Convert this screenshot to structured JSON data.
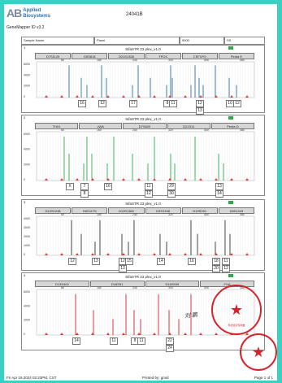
{
  "header": {
    "logo_mark": "AB",
    "logo_line1": "Applied",
    "logo_line2": "Biosystems",
    "software": "GeneMapper ID v3.2",
    "document_id": "24041B"
  },
  "info_row": {
    "sample_name": "Sample Name",
    "panel": "Panel",
    "sample_value": "9000",
    "ss": "SS"
  },
  "axis_ticks": [
    "80",
    "160",
    "240",
    "320",
    "400",
    "480"
  ],
  "panels": [
    {
      "number": "1",
      "title": "SifaSTR 23 plex_v1.0",
      "markers": [
        "D7S1129",
        "D5S818",
        "D21S1338",
        "TPOX",
        "CSF1PO",
        "Penta E"
      ],
      "y_ticks": [
        "6000",
        "4000",
        "2000",
        "0"
      ],
      "color": "#2e6fb3",
      "alleles": [
        "16",
        "12",
        "17",
        "8",
        "11",
        "12",
        "13",
        "10",
        "12"
      ]
    },
    {
      "number": "2",
      "title": "SifaSTR 23 plex_v1.0",
      "markers": [
        "TH01",
        "vWA",
        "D7S820",
        "D21S11",
        "Penta D"
      ],
      "y_ticks": [
        "6000",
        "4000",
        "2000",
        "0"
      ],
      "color": "#2faa4b",
      "alleles": [
        "X",
        "7",
        "8",
        "16",
        "11",
        "12",
        "29",
        "30",
        "13",
        "14"
      ]
    },
    {
      "number": "3",
      "title": "SifaSTR 23 plex_v1.0",
      "markers": [
        "D10S1248",
        "D6S1179",
        "D13S1360",
        "D2S1338",
        "D19S391",
        "D8S1043"
      ],
      "y_ticks": [
        "4000",
        "3000",
        "2000",
        "1000",
        "0"
      ],
      "color": "#333333",
      "alleles": [
        "12",
        "13",
        "12",
        "13",
        "15",
        "14",
        "16",
        "18",
        "20",
        "11",
        "12"
      ]
    },
    {
      "number": "4",
      "title": "SifaSTR 23 plex_v1.0",
      "markers": [
        "D13S400",
        "D18S51",
        "D16S539",
        "FGA"
      ],
      "y_ticks": [
        "6000",
        "4000",
        "2000",
        "0"
      ],
      "color": "#d6232a",
      "alleles": [
        "14",
        "11",
        "8",
        "11",
        "22",
        "24"
      ]
    }
  ],
  "footer": {
    "printed_on": "Fri Apr 19,2024 02:23PM, CST",
    "printed_by": "Printed by: gmid",
    "page": "Page 1 of 1"
  },
  "signature": "刘 鹏",
  "stamp_text": "司法鉴定专用章",
  "colors": {
    "background": "#3ad0c4",
    "stamp": "#d6232a"
  }
}
